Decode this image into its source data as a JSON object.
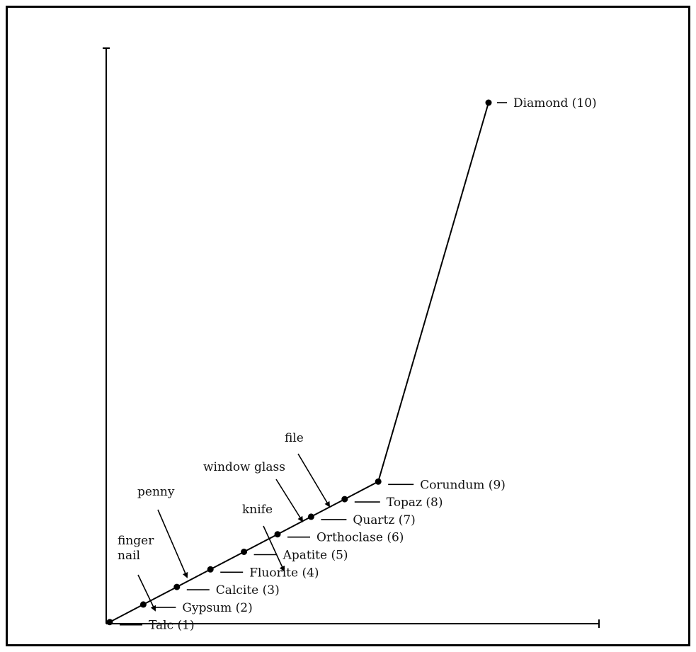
{
  "chart_data": {
    "type": "line",
    "x": [
      1,
      2,
      3,
      4,
      5,
      6,
      7,
      8,
      9,
      10
    ],
    "values": [
      1,
      2,
      3,
      4,
      5,
      6,
      7,
      8,
      9,
      42
    ],
    "point_labels": [
      "Talc (1)",
      "Gypsum (2)",
      "Calcite (3)",
      "Fluorite (4)",
      "Apatite (5)",
      "Orthoclase (6)",
      "Quartz (7)",
      "Topaz (8)",
      "Corundum (9)",
      "Diamond (10)"
    ],
    "annotations": [
      {
        "text": [
          "finger",
          "nail"
        ],
        "between": [
          1,
          2
        ]
      },
      {
        "text": [
          "penny"
        ],
        "between": [
          2,
          3
        ]
      },
      {
        "text": [
          "knife"
        ],
        "between": [
          4,
          5
        ]
      },
      {
        "text": [
          "window glass"
        ],
        "between": [
          5,
          6
        ]
      },
      {
        "text": [
          "file"
        ],
        "between": [
          6,
          7
        ]
      }
    ],
    "title": "",
    "xlabel": "",
    "ylabel": "",
    "grid": false
  }
}
